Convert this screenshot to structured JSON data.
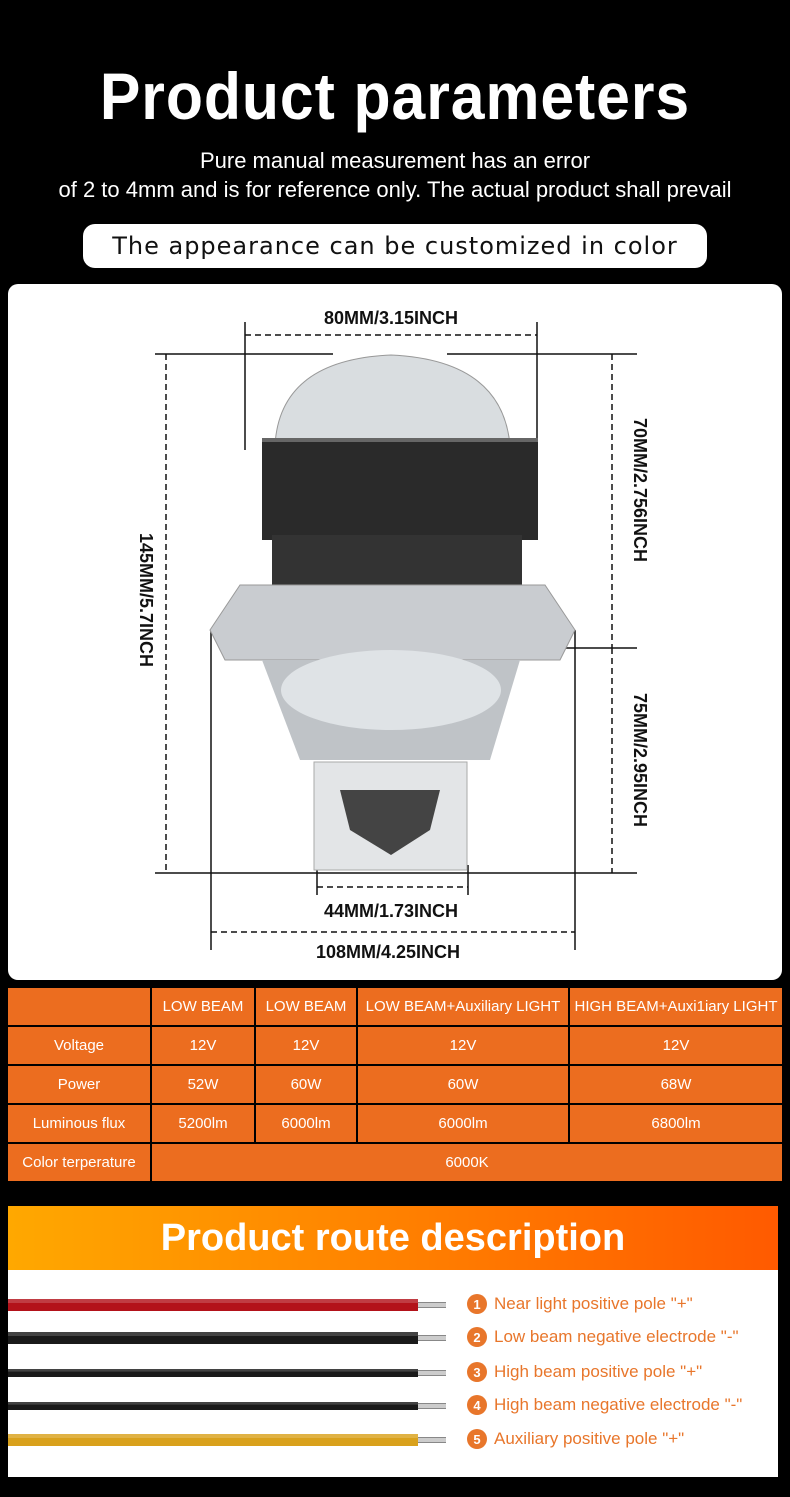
{
  "header": {
    "title": "Product parameters",
    "subtitle_line1": "Pure manual measurement has an error",
    "subtitle_line2": "of 2 to 4mm and is for reference only. The actual product shall prevail",
    "pill": "The appearance can be customized in color"
  },
  "dimensions": {
    "top_width": "80MM/3.15INCH",
    "total_height": "145MM/5.7INCH",
    "upper_height": "70MM/2.756INCH",
    "lower_height": "75MM/2.95INCH",
    "base_width": "44MM/1.73INCH",
    "flange_width": "108MM/4.25INCH"
  },
  "table": {
    "headers": [
      "",
      "LOW BEAM",
      "LOW BEAM",
      "LOW BEAM+Auxiliary LIGHT",
      "HIGH BEAM+Auxi1iary LIGHT"
    ],
    "rows": [
      [
        "Voltage",
        "12V",
        "12V",
        "12V",
        "12V"
      ],
      [
        "Power",
        "52W",
        "60W",
        "60W",
        "68W"
      ],
      [
        "Luminous flux",
        "5200lm",
        "6000lm",
        "6000lm",
        "6800lm"
      ]
    ],
    "color_temp": {
      "label": "Color terperature",
      "value": "6000K"
    },
    "color": "#ec6d1f"
  },
  "route": {
    "title": "Product route description",
    "wires": [
      {
        "num": "1",
        "label": "Near light positive pole \"+\"",
        "color": "#b3121a"
      },
      {
        "num": "2",
        "label": "Low beam negative electrode \"-\"",
        "color": "#1a1a1a"
      },
      {
        "num": "3",
        "label": "High beam positive pole \"+\"",
        "color": "#1a1a1a"
      },
      {
        "num": "4",
        "label": "High beam negative electrode \"-\"",
        "color": "#1a1a1a"
      },
      {
        "num": "5",
        "label": "Auxiliary positive pole \"+\"",
        "color": "#d9a11c"
      }
    ]
  }
}
